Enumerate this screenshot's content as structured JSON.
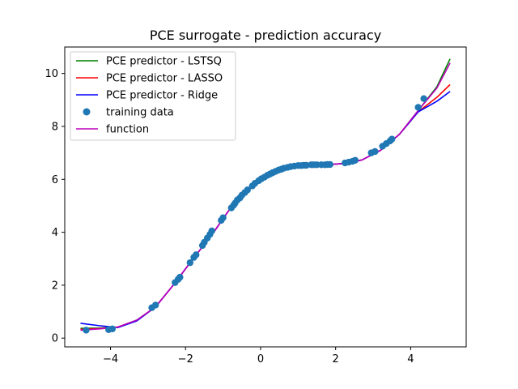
{
  "chart_data": {
    "type": "line",
    "title": "PCE surrogate - prediction accuracy",
    "xlabel": "",
    "ylabel": "",
    "xlim": [
      -5.22,
      5.48
    ],
    "ylim": [
      -0.33,
      11.0
    ],
    "xticks": [
      -4,
      -2,
      0,
      2,
      4
    ],
    "yticks": [
      0,
      2,
      4,
      6,
      8,
      10
    ],
    "xtick_labels": [
      "−4",
      "−2",
      "0",
      "2",
      "4"
    ],
    "ytick_labels": [
      "0",
      "2",
      "4",
      "6",
      "8",
      "10"
    ],
    "grid": false,
    "legend_position": "top-left",
    "legend": [
      {
        "label": "PCE predictor - LSTSQ",
        "kind": "line",
        "color": "#008000"
      },
      {
        "label": "PCE predictor - LASSO",
        "kind": "line",
        "color": "#ff0000"
      },
      {
        "label": "PCE predictor - Ridge",
        "kind": "line",
        "color": "#0000ff"
      },
      {
        "label": "training data",
        "kind": "marker",
        "color": "#1f77b4"
      },
      {
        "label": "function",
        "kind": "line",
        "color": "#bf00bf"
      }
    ],
    "series": [
      {
        "name": "PCE predictor - LSTSQ",
        "color": "#008000",
        "x": [
          -4.8,
          -4.3,
          -3.8,
          -3.3,
          -2.8,
          -2.3,
          -1.8,
          -1.3,
          -0.8,
          -0.3,
          0.2,
          0.7,
          1.2,
          1.7,
          2.2,
          2.7,
          3.2,
          3.7,
          4.2,
          4.7,
          5.05
        ],
        "y": [
          0.37,
          0.38,
          0.42,
          0.68,
          1.18,
          2.05,
          3.0,
          3.9,
          4.92,
          5.63,
          6.15,
          6.42,
          6.52,
          6.54,
          6.6,
          6.73,
          7.1,
          7.7,
          8.6,
          9.5,
          10.55
        ]
      },
      {
        "name": "PCE predictor - LASSO",
        "color": "#ff0000",
        "x": [
          -4.8,
          -4.3,
          -3.8,
          -3.3,
          -2.8,
          -2.3,
          -1.8,
          -1.3,
          -0.8,
          -0.3,
          0.2,
          0.7,
          1.2,
          1.7,
          2.2,
          2.7,
          3.2,
          3.7,
          4.2,
          4.7,
          5.05
        ],
        "y": [
          0.33,
          0.36,
          0.42,
          0.67,
          1.18,
          2.05,
          3.0,
          3.9,
          4.92,
          5.63,
          6.15,
          6.42,
          6.52,
          6.54,
          6.6,
          6.73,
          7.1,
          7.7,
          8.55,
          9.1,
          9.58
        ]
      },
      {
        "name": "PCE predictor - Ridge",
        "color": "#0000ff",
        "x": [
          -4.8,
          -4.3,
          -3.8,
          -3.3,
          -2.8,
          -2.3,
          -1.8,
          -1.3,
          -0.8,
          -0.3,
          0.2,
          0.7,
          1.2,
          1.7,
          2.2,
          2.7,
          3.2,
          3.7,
          4.2,
          4.7,
          5.05
        ],
        "y": [
          0.56,
          0.47,
          0.4,
          0.65,
          1.18,
          2.05,
          3.0,
          3.9,
          4.92,
          5.63,
          6.15,
          6.42,
          6.52,
          6.54,
          6.6,
          6.73,
          7.1,
          7.7,
          8.55,
          8.95,
          9.32
        ]
      },
      {
        "name": "function",
        "color": "#bf00bf",
        "x": [
          -4.8,
          -4.3,
          -3.8,
          -3.3,
          -2.8,
          -2.3,
          -1.8,
          -1.3,
          -0.8,
          -0.3,
          0.2,
          0.7,
          1.2,
          1.7,
          2.2,
          2.7,
          3.2,
          3.7,
          4.2,
          4.7,
          5.05
        ],
        "y": [
          0.3,
          0.35,
          0.42,
          0.68,
          1.18,
          2.05,
          3.0,
          3.9,
          4.92,
          5.63,
          6.15,
          6.42,
          6.52,
          6.54,
          6.6,
          6.73,
          7.1,
          7.7,
          8.6,
          9.45,
          10.4
        ]
      }
    ],
    "scatter": {
      "name": "training data",
      "color": "#1f77b4",
      "x": [
        -4.65,
        -4.05,
        -3.95,
        -2.9,
        -2.8,
        -2.28,
        -2.2,
        -2.15,
        -1.88,
        -1.78,
        -1.72,
        -1.55,
        -1.5,
        -1.42,
        -1.35,
        -1.3,
        -1.05,
        -1.0,
        -0.78,
        -0.72,
        -0.68,
        -0.62,
        -0.55,
        -0.5,
        -0.42,
        -0.35,
        -0.22,
        -0.15,
        -0.05,
        0.02,
        0.1,
        0.18,
        0.25,
        0.32,
        0.4,
        0.48,
        0.55,
        0.62,
        0.72,
        0.8,
        0.9,
        1.0,
        1.08,
        1.15,
        1.22,
        1.35,
        1.42,
        1.5,
        1.62,
        1.72,
        1.78,
        1.85,
        2.25,
        2.35,
        2.45,
        2.52,
        2.95,
        3.05,
        3.25,
        3.35,
        3.45,
        3.5,
        4.2,
        4.35
      ],
      "y": [
        0.3,
        0.32,
        0.35,
        1.15,
        1.25,
        2.1,
        2.22,
        2.3,
        2.85,
        3.05,
        3.15,
        3.5,
        3.62,
        3.78,
        3.92,
        4.05,
        4.45,
        4.55,
        4.92,
        5.02,
        5.1,
        5.22,
        5.3,
        5.4,
        5.5,
        5.6,
        5.75,
        5.85,
        5.95,
        6.02,
        6.08,
        6.15,
        6.2,
        6.25,
        6.3,
        6.35,
        6.38,
        6.42,
        6.45,
        6.48,
        6.5,
        6.52,
        6.52,
        6.53,
        6.53,
        6.55,
        6.55,
        6.55,
        6.55,
        6.55,
        6.56,
        6.56,
        6.62,
        6.65,
        6.68,
        6.72,
        7.0,
        7.05,
        7.25,
        7.35,
        7.45,
        7.52,
        8.72,
        9.05
      ]
    }
  }
}
